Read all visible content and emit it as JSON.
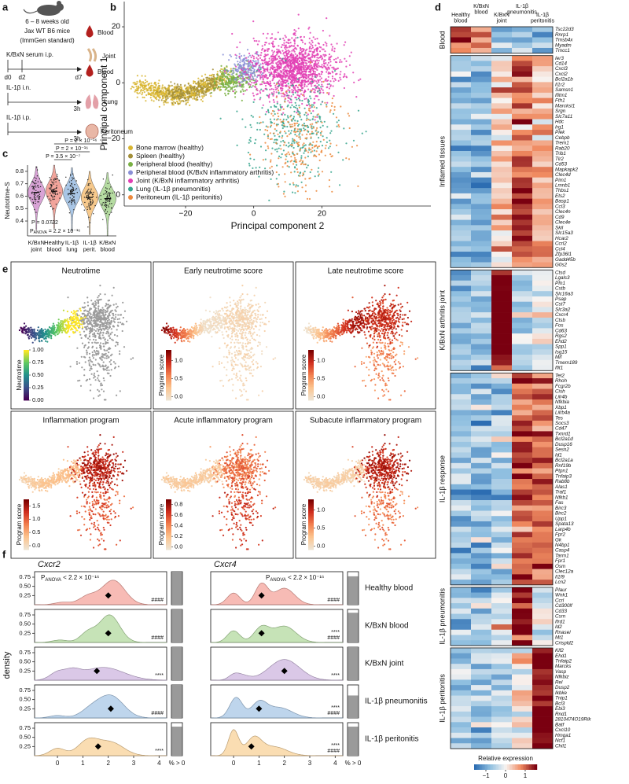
{
  "panel_a": {
    "label": "a",
    "age": "6 – 8 weeks old",
    "strain": "Jax WT B6 mice",
    "standard": "(ImmGen standard)",
    "blood": "Blood",
    "kbxn": "K/BxN serum i.p.",
    "d0": "d0",
    "d2": "d2",
    "d7": "d7",
    "joint": "Joint",
    "blood2": "Blood",
    "il1b_in": "IL-1β i.n.",
    "h1": "3h",
    "lung": "Lung",
    "il1b_ip": "IL-1β i.p.",
    "h2": "3h",
    "peritoneum": "Peritoneum"
  },
  "panel_b": {
    "label": "b",
    "type": "scatter",
    "xlabel": "Principal component 2",
    "ylabel": "Principal component 1",
    "xlim": [
      -38,
      52
    ],
    "ylim": [
      -44,
      29
    ],
    "xticks": [
      {
        "value": -20,
        "label": "−20"
      },
      0,
      20
    ],
    "yticks": [
      {
        "value": -40,
        "label": "−40"
      },
      {
        "value": -20,
        "label": "−20"
      },
      0,
      20
    ],
    "series": [
      {
        "name": "Bone marrow (healthy)",
        "color": "#d8b530"
      },
      {
        "name": "Spleen (healthy)",
        "color": "#a38f3a"
      },
      {
        "name": "Peripheral blood (healthy)",
        "color": "#79b043"
      },
      {
        "name": "Peripheral blood (K/BxN inflammatory arthritis)",
        "color": "#8a8fd6"
      },
      {
        "name": "Joint (K/BxN inflammatory arthritis)",
        "color": "#e23fb4"
      },
      {
        "name": "Lung (IL-1β pneumonitis)",
        "color": "#36a58d"
      },
      {
        "name": "Peritoneum (IL-1β peritonitis)",
        "color": "#ec8a3d"
      }
    ]
  },
  "panel_c": {
    "label": "c",
    "type": "violin",
    "ylabel": "Neutrotime-S",
    "categories": [
      "K/BxN joint",
      "Healthy blood",
      "IL-1β lung",
      "IL-1β perit.",
      "K/BxN blood"
    ],
    "colors": [
      "#d9a3d6",
      "#f2a49b",
      "#a9c6e6",
      "#f7c98c",
      "#b6dca2"
    ],
    "medians": [
      0.63,
      0.64,
      0.62,
      0.59,
      0.58
    ],
    "ylim": [
      0.28,
      0.85
    ],
    "yticks": [
      0.4,
      0.5,
      0.6,
      0.7,
      0.8
    ],
    "annotations": [
      "P = 2 × 10⁻¹⁶",
      "P = 2 × 10⁻¹⁶",
      "P = 3.5 × 10⁻⁷",
      "P = 0.0732"
    ],
    "anova": {
      "p": "P",
      "sub": "ANOVA",
      "rest": " = 2.2 × 10⁻¹⁶"
    }
  },
  "panel_d": {
    "label": "d",
    "columns": [
      "Healthy blood",
      "K/BxN blood",
      "K/BxN joint",
      "IL-1β pneumonitis",
      "IL-1β peritonitis"
    ],
    "modules": [
      {
        "name": "Blood",
        "means": [
          1.0,
          0.8,
          -0.8,
          -0.6,
          -0.8
        ],
        "genes": [
          "Tsc22d3",
          "Rnrp1",
          "Tmsb4x",
          "Myadm",
          "Tmcc1"
        ]
      },
      {
        "name": "Inflamed tissues",
        "means": [
          -0.8,
          -0.9,
          0.2,
          1.0,
          0.6
        ],
        "genes": [
          "Ier3",
          "Cd14",
          "Cxcl3",
          "Cxcl2",
          "Bcl2a1b",
          "Il1r2",
          "Samsn1",
          "Ifitm1",
          "Fth1",
          "Marcksl1",
          "Srgn",
          "Slc7a11",
          "Hdc",
          "Irg1",
          "Plek",
          "Cebpb",
          "Trem1",
          "Rab20",
          "Trib1",
          "Tlr2",
          "Cd53",
          "Mapkapk2",
          "Clec4d",
          "Pim1",
          "Lmnb1",
          "Thbs1",
          "Ets2",
          "Basp1",
          "Ccl3",
          "Clec4n",
          "Cd9",
          "Clec4e",
          "Skil",
          "Slc15a3",
          "Hcar2",
          "Ccrl2",
          "Ccl4",
          "Zfp36l1",
          "Gadd45b",
          "G0s2"
        ]
      },
      {
        "name": "K/BxN arthritis joint",
        "means": [
          -0.6,
          -0.7,
          1.7,
          -0.5,
          -0.2
        ],
        "genes": [
          "Ctsd",
          "Lgals3",
          "Pfn1",
          "Cstb",
          "Slc16a3",
          "Psap",
          "Cst7",
          "Slc3a2",
          "Cxcr4",
          "Ctsb",
          "Fos",
          "Cd63",
          "Rgs2",
          "Ehd2",
          "Spp1",
          "Isg15",
          "Mif",
          "Tmem189",
          "Ifit1"
        ]
      },
      {
        "name": "IL-1β response",
        "means": [
          -0.6,
          -0.7,
          -0.6,
          1.1,
          0.9
        ],
        "genes": [
          "Tet2",
          "Rhoh",
          "Fcgr2b",
          "Cish",
          "Lilr4b",
          "Nfkbia",
          "Xbp1",
          "Lilrb4a",
          "Tes",
          "Socs3",
          "Cd47",
          "Txnrd1",
          "Bcl2a1d",
          "Dusp16",
          "Sesn2",
          "Id1",
          "Bcl2a1a",
          "Rnf19b",
          "Ptpn1",
          "Tnfaip3",
          "Rab8b",
          "Alas1",
          "Traf1",
          "Nfkb1",
          "Fas",
          "Birc3",
          "Birc2",
          "Upp1",
          "Spata13",
          "Larp4b",
          "Fpr2",
          "Gk",
          "N4bp1",
          "Casp4",
          "Tarm1",
          "Fpr1",
          "Osm",
          "Clec12a",
          "Il1f9",
          "Lcn2"
        ]
      },
      {
        "name": "IL-1β pneumonitis",
        "means": [
          -0.5,
          -0.6,
          -0.2,
          1.8,
          -0.3
        ],
        "genes": [
          "Plaur",
          "Wnk1",
          "Ccrl",
          "Cd300lf",
          "Cd33",
          "Csrn",
          "Ifrd1",
          "Id2",
          "Rnasel",
          "Mt1",
          "Crispld2"
        ]
      },
      {
        "name": "IL-1β peritonitis",
        "means": [
          -0.5,
          -0.6,
          -0.5,
          0.1,
          1.7
        ],
        "genes": [
          "Klf2",
          "Ehd1",
          "Tnfaip2",
          "Marcks",
          "Vasp",
          "Nfkbiz",
          "Rel",
          "Dusp2",
          "Ikbke",
          "Tnip1",
          "Bcl3",
          "Ebi3",
          "Rnd1",
          "2810474O19Rik",
          "Batf",
          "Cxcl10",
          "Hmga1",
          "Ncf1",
          "Chil1"
        ]
      }
    ],
    "colorbar": {
      "title": "Relative expression",
      "lim": [
        -1.6,
        1.6
      ],
      "ticks": [
        {
          "value": -1,
          "label": "−1"
        },
        0,
        1
      ]
    }
  },
  "panel_e": {
    "label": "e",
    "panels": [
      {
        "title": "Neutrotime",
        "cbar_title": "Neutrotime",
        "lim": [
          0,
          1
        ],
        "ticks": [
          {
            "value": 0,
            "label": "0.00"
          },
          0.25,
          {
            "value": 0.5,
            "label": "0.50"
          },
          0.75,
          {
            "value": 1,
            "label": "1.00"
          }
        ]
      },
      {
        "title": "Early neutrotime score",
        "cbar_title": "Program score",
        "lim": [
          -0.1,
          1.3
        ],
        "ticks": [
          {
            "value": 0,
            "label": "0.0"
          },
          0.5,
          {
            "value": 1,
            "label": "1.0"
          }
        ]
      },
      {
        "title": "Late neutrotime score",
        "cbar_title": "Program score",
        "lim": [
          -0.1,
          1.3
        ],
        "ticks": [
          {
            "value": 0,
            "label": "0.0"
          },
          0.5,
          {
            "value": 1,
            "label": "1.0"
          }
        ]
      },
      {
        "title": "Inflammation program",
        "cbar_title": "Program score",
        "lim": [
          -0.15,
          1.75
        ],
        "ticks": [
          {
            "value": 0,
            "label": "0.0"
          },
          0.5,
          {
            "value": 1,
            "label": "1.0"
          },
          1.5
        ]
      },
      {
        "title": "Acute inflammatory program",
        "cbar_title": "Program score",
        "lim": [
          -0.05,
          0.9
        ],
        "ticks": [
          {
            "value": 0,
            "label": "0.0"
          },
          0.2,
          0.4,
          0.6,
          0.8
        ]
      },
      {
        "title": "Subacute inflammatory program",
        "cbar_title": "Program score",
        "lim": [
          -0.1,
          1.3
        ],
        "ticks": [
          {
            "value": 0,
            "label": "0.0"
          },
          0.5,
          {
            "value": 1,
            "label": "1.0"
          }
        ]
      }
    ]
  },
  "panel_f": {
    "label": "f",
    "ylabel": "density",
    "pct_label": "% > 0",
    "xlim": [
      -0.9,
      4.3
    ],
    "xticks": [
      0,
      1,
      2,
      3,
      4
    ],
    "ylim": [
      0,
      0.9
    ],
    "yticks": [
      0.25,
      {
        "value": 0.5,
        "label": "0.50"
      },
      0.75
    ],
    "rows": [
      {
        "name": "Healthy blood",
        "color": "#f4a49c"
      },
      {
        "name": "K/BxN blood",
        "color": "#b3da9f"
      },
      {
        "name": "K/BxN joint",
        "color": "#cdb6df"
      },
      {
        "name": "IL-1β pneumonitis",
        "color": "#a8c7e6"
      },
      {
        "name": "IL-1β peritonitis",
        "color": "#f8d198"
      }
    ],
    "genes": [
      {
        "name": "Cxcr2",
        "medians": [
          2.0,
          2.0,
          1.55,
          2.1,
          1.6
        ],
        "pct": [
          100,
          100,
          100,
          100,
          88
        ],
        "stars": [
          [
            "####"
          ],
          [
            "####"
          ],
          [
            "****"
          ],
          [
            "####"
          ],
          [
            "****"
          ]
        ],
        "anova": {
          "p": "P",
          "sub": "ANOVA",
          "rest": " < 2.2 × 10⁻¹⁶"
        }
      },
      {
        "name": "Cxcr4",
        "medians": [
          1.1,
          1.1,
          2.0,
          1.0,
          0.7
        ],
        "pct": [
          86,
          90,
          100,
          68,
          88
        ],
        "stars": [
          [
            "####"
          ],
          [
            "****",
            "####"
          ],
          [
            "****"
          ],
          [
            "****",
            "####"
          ],
          [
            "****",
            "####"
          ]
        ],
        "anova": {
          "p": "P",
          "sub": "ANOVA",
          "rest": " < 2.2 × 10⁻¹⁶"
        }
      }
    ]
  }
}
